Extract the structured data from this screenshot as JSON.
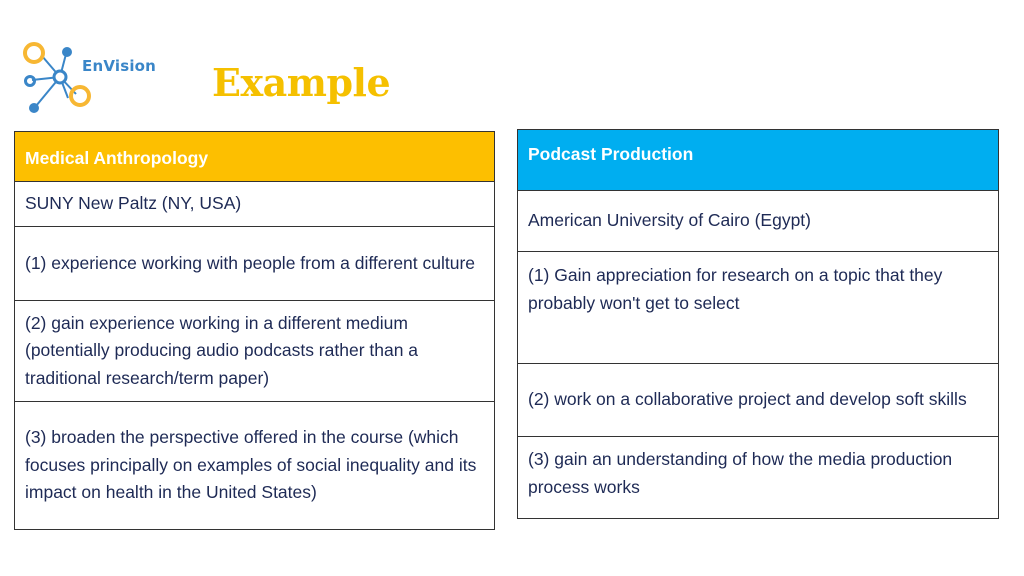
{
  "brand": {
    "name": "EnVision"
  },
  "title": "Example",
  "colors": {
    "title": "#f5c000",
    "left_header": "#fdbf00",
    "right_header": "#00aef0",
    "body_text": "#1e2a55",
    "logo_orange": "#f7b733",
    "logo_blue": "#3a86c8"
  },
  "left_table": {
    "header": "Medical Anthropology",
    "rows": [
      "SUNY New Paltz (NY, USA)",
      "(1) experience working with people from a different culture",
      "(2) gain experience working in a different medium (potentially producing audio podcasts rather than a traditional research/term paper)",
      "(3) broaden the perspective offered in the course (which focuses principally on examples of social inequality and its impact on health in the United States)"
    ]
  },
  "right_table": {
    "header": "Podcast Production",
    "rows": [
      "American University of Cairo (Egypt)",
      "(1) Gain appreciation for research on a topic that they probably won't get to select",
      "(2) work on a collaborative project and develop soft skills",
      "(3) gain an understanding of how the media production process works"
    ]
  }
}
